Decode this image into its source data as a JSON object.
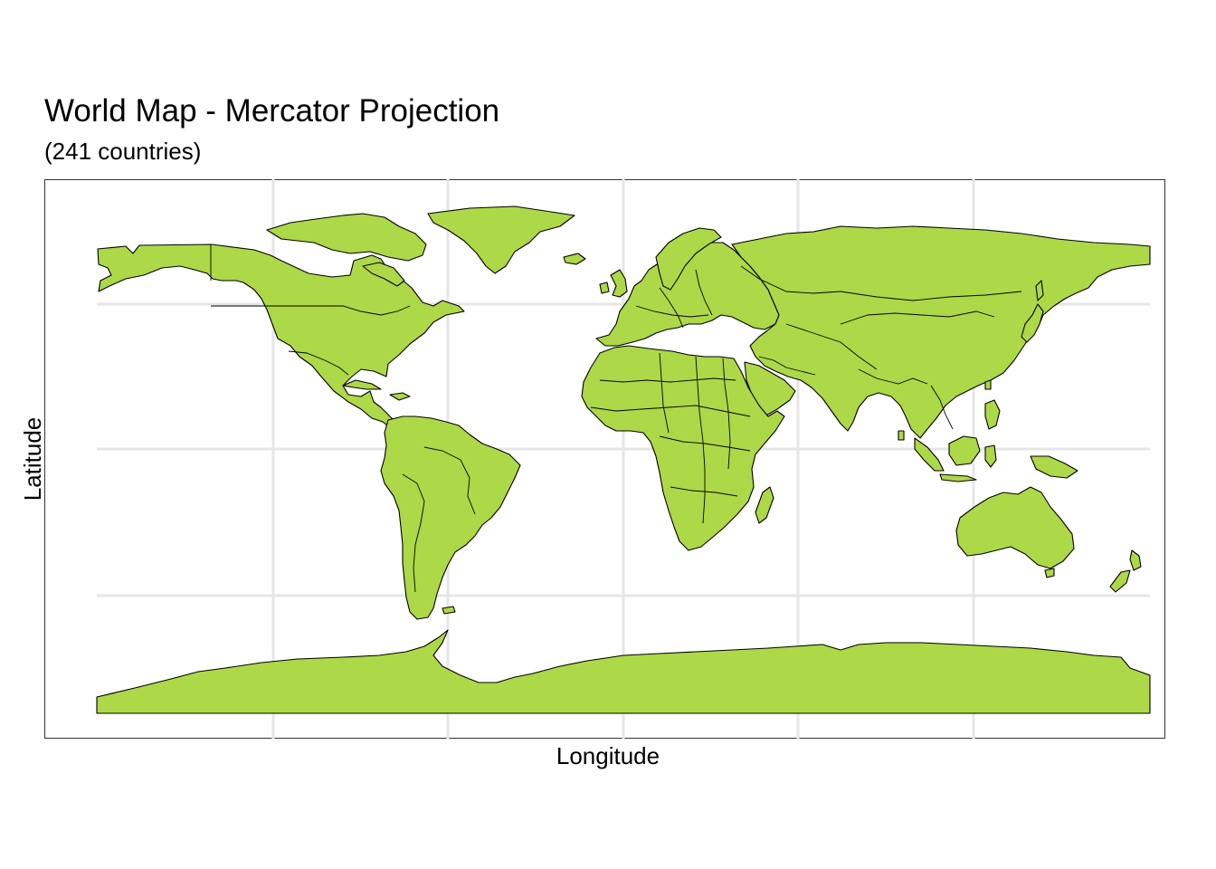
{
  "title": "World Map - Mercator Projection",
  "subtitle": "(241 countries)",
  "xlabel": "Longitude",
  "ylabel": "Latitude",
  "land_color": "#ADD847",
  "border_color": "#000000",
  "panel_background": "#ffffff",
  "grid_color": "#e6e6e6",
  "projection": "mercator",
  "country_count": 241
}
